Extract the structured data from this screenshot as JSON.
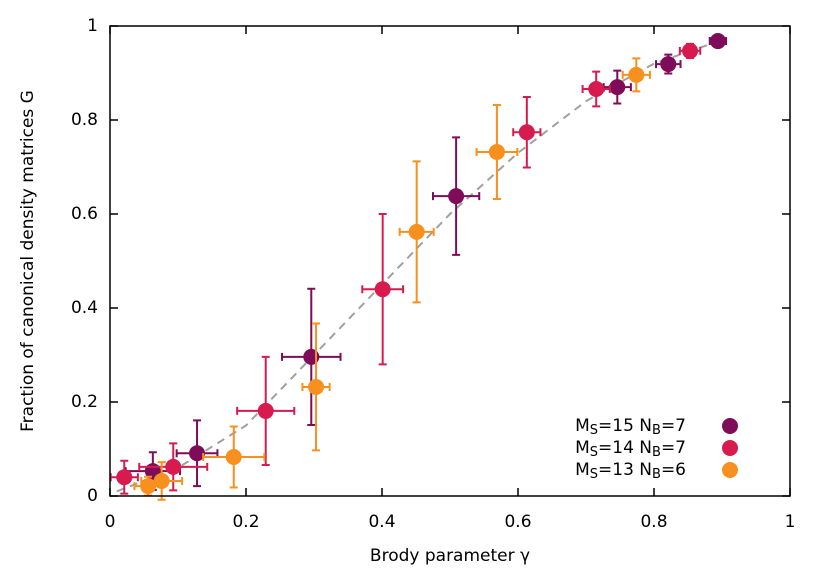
{
  "chart_data": {
    "type": "scatter",
    "xlabel": "Brody parameter γ",
    "ylabel": "Fraction of canonical density matrices G",
    "xlim": [
      0,
      1
    ],
    "ylim": [
      0,
      1
    ],
    "xticks": [
      0,
      0.2,
      0.4,
      0.6,
      0.8,
      1
    ],
    "yticks": [
      0,
      0.2,
      0.4,
      0.6,
      0.8,
      1
    ],
    "legend": "lower right",
    "fit_line": {
      "color": "#a0a0a0",
      "x": [
        0.01,
        0.1,
        0.2,
        0.3,
        0.4,
        0.5,
        0.6,
        0.7,
        0.8,
        0.9
      ],
      "values": [
        0.01,
        0.06,
        0.15,
        0.3,
        0.45,
        0.6,
        0.73,
        0.84,
        0.92,
        0.97
      ]
    },
    "series": [
      {
        "name": "MS=15 NB=7",
        "color": "#7e0c58",
        "x": [
          0.063,
          0.128,
          0.296,
          0.509,
          0.746,
          0.821,
          0.894
        ],
        "values": [
          0.053,
          0.091,
          0.296,
          0.638,
          0.87,
          0.919,
          0.968
        ],
        "xerr": [
          0.04,
          0.03,
          0.043,
          0.034,
          0.02,
          0.018,
          0.012
        ],
        "yerr": [
          0.04,
          0.07,
          0.145,
          0.125,
          0.035,
          0.02,
          0.01
        ]
      },
      {
        "name": "MS=14 NB=7",
        "color": "#d81b4f",
        "x": [
          0.021,
          0.093,
          0.229,
          0.401,
          0.613,
          0.715,
          0.853
        ],
        "values": [
          0.04,
          0.062,
          0.181,
          0.44,
          0.774,
          0.866,
          0.947
        ],
        "xerr": [
          0.02,
          0.05,
          0.042,
          0.03,
          0.02,
          0.02,
          0.015
        ],
        "yerr": [
          0.035,
          0.05,
          0.115,
          0.16,
          0.075,
          0.037,
          0.015
        ]
      },
      {
        "name": "MS=13 NB=6",
        "color": "#f7901e",
        "x": [
          0.056,
          0.076,
          0.182,
          0.303,
          0.451,
          0.569,
          0.774
        ],
        "values": [
          0.021,
          0.032,
          0.083,
          0.232,
          0.562,
          0.732,
          0.896
        ],
        "xerr": [
          0.02,
          0.03,
          0.045,
          0.02,
          0.025,
          0.03,
          0.02
        ],
        "yerr": [
          0.02,
          0.04,
          0.065,
          0.135,
          0.15,
          0.1,
          0.035
        ]
      }
    ]
  }
}
